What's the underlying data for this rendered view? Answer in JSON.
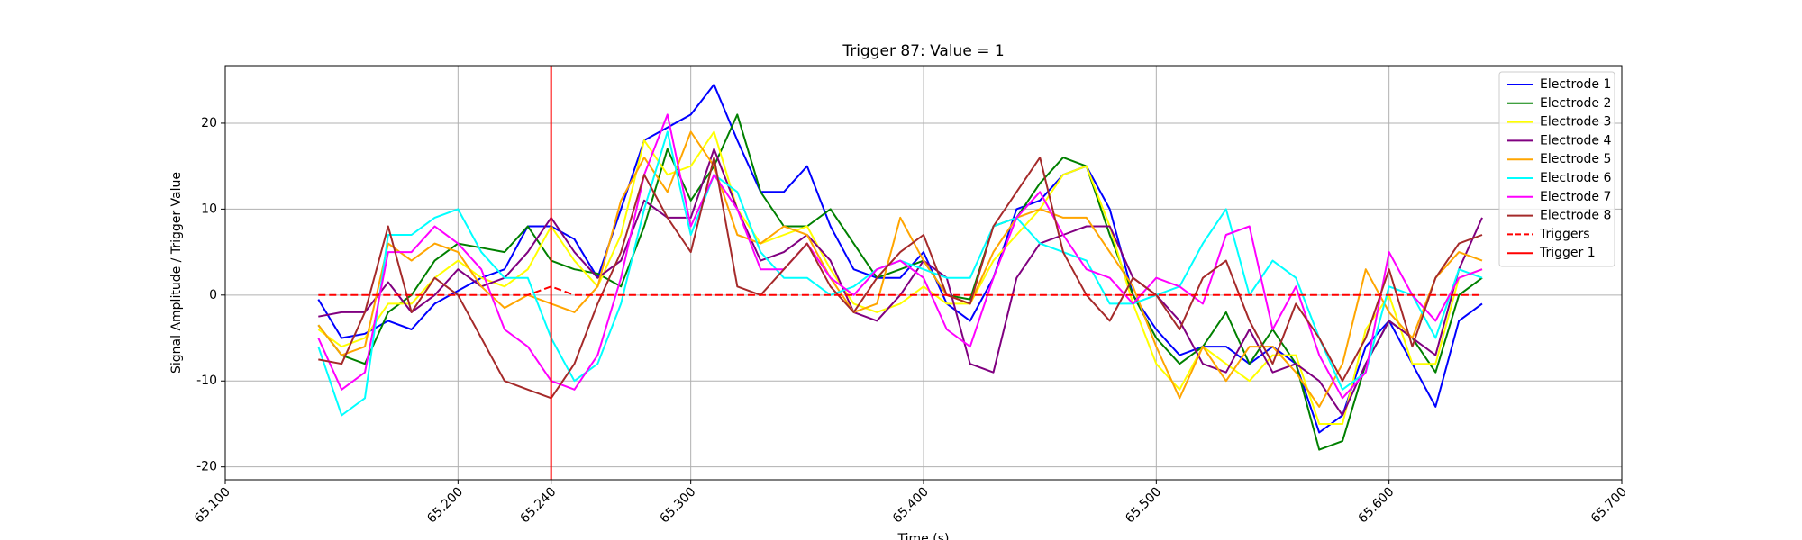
{
  "chart_data": {
    "type": "line",
    "title": "Trigger 87: Value = 1",
    "x_label": "Time (s)",
    "y_label": "Signal Amplitude / Trigger Value",
    "x": [
      65.14,
      65.15,
      65.16,
      65.17,
      65.18,
      65.19,
      65.2,
      65.21,
      65.22,
      65.23,
      65.24,
      65.25,
      65.26,
      65.27,
      65.28,
      65.29,
      65.3,
      65.31,
      65.32,
      65.33,
      65.34,
      65.35,
      65.36,
      65.37,
      65.38,
      65.39,
      65.4,
      65.41,
      65.42,
      65.43,
      65.44,
      65.45,
      65.46,
      65.47,
      65.48,
      65.49,
      65.5,
      65.51,
      65.52,
      65.53,
      65.54,
      65.55,
      65.56,
      65.57,
      65.58,
      65.59,
      65.6,
      65.61,
      65.62,
      65.63,
      65.64
    ],
    "series": [
      {
        "name": "Electrode 1",
        "color": "#0000ff",
        "values": [
          -0.5,
          -5,
          -4.5,
          -3,
          -4,
          -1,
          0.5,
          2,
          3,
          8,
          8,
          6.5,
          2,
          10,
          18,
          19.5,
          21,
          24.5,
          18,
          12,
          12,
          15,
          8,
          3,
          2,
          2,
          5,
          -1,
          -3,
          2,
          10,
          11,
          14,
          15,
          10,
          0,
          -4,
          -7,
          -6,
          -6,
          -8,
          -6,
          -8,
          -16,
          -14,
          -6,
          -3,
          -8,
          -13,
          -3,
          -1
        ]
      },
      {
        "name": "Electrode 2",
        "color": "#008000",
        "values": [
          -3.5,
          -7,
          -8,
          -2,
          0,
          4,
          6,
          5.5,
          5,
          8,
          4,
          3,
          2.5,
          1,
          8,
          17,
          11,
          15,
          21,
          12,
          8,
          8,
          10,
          6,
          2,
          3,
          4,
          0,
          -0.5,
          8,
          9,
          13,
          16,
          15,
          7,
          0,
          -5,
          -8,
          -6,
          -2,
          -8,
          -4,
          -8,
          -18,
          -17,
          -8,
          -3,
          -5,
          -9,
          0,
          2
        ]
      },
      {
        "name": "Electrode 3",
        "color": "#ffff00",
        "values": [
          -4,
          -6,
          -5,
          -1,
          -1,
          2,
          4,
          2,
          1,
          3,
          8,
          4,
          1,
          7,
          18,
          14,
          15,
          19,
          10,
          6,
          7,
          8,
          3,
          -1,
          -2,
          -1,
          1,
          -1,
          -1,
          4,
          7,
          10,
          14,
          15,
          8,
          -1,
          -8,
          -11,
          -6,
          -8,
          -10,
          -7,
          -7,
          -15,
          -15,
          -4,
          0,
          -8,
          -8,
          2,
          3
        ]
      },
      {
        "name": "Electrode 4",
        "color": "#800080",
        "values": [
          -2.5,
          -2,
          -2,
          1.5,
          -2,
          0,
          3,
          1,
          2,
          5,
          9,
          5,
          2,
          4,
          11,
          9,
          9,
          17,
          10,
          4,
          5,
          7,
          4,
          -2,
          -3,
          0,
          4,
          2,
          -8,
          -9,
          2,
          6,
          7,
          8,
          8,
          2,
          0,
          -3,
          -8,
          -9,
          -4,
          -9,
          -8,
          -10,
          -14,
          -8,
          -3,
          -5,
          -7,
          3,
          9
        ]
      },
      {
        "name": "Electrode 5",
        "color": "#ffa500",
        "values": [
          -3.5,
          -7,
          -6,
          6,
          4,
          6,
          5,
          1,
          -1.5,
          0,
          -1,
          -2,
          1,
          11,
          16,
          12,
          19,
          15,
          7,
          6,
          8,
          7,
          2,
          -2,
          -1,
          9,
          4,
          0,
          -1,
          5,
          9,
          10,
          9,
          9,
          5,
          1,
          -6,
          -12,
          -6,
          -10,
          -6,
          -6,
          -9,
          -13,
          -8,
          3,
          -2,
          -5,
          2,
          5,
          4
        ]
      },
      {
        "name": "Electrode 6",
        "color": "#00ffff",
        "values": [
          -6,
          -14,
          -12,
          7,
          7,
          9,
          10,
          5,
          2,
          2,
          -5,
          -10,
          -8,
          -1,
          10,
          19,
          7,
          14,
          12,
          5,
          2,
          2,
          0,
          1,
          3,
          4,
          3,
          2,
          2,
          8,
          9,
          6,
          5,
          4,
          -1,
          -1,
          0,
          1,
          6,
          10,
          0,
          4,
          2,
          -5,
          -11,
          -9,
          1,
          0,
          -5,
          3,
          2
        ]
      },
      {
        "name": "Electrode 7",
        "color": "#ff00ff",
        "values": [
          -5,
          -11,
          -9,
          5,
          5,
          8,
          6,
          3,
          -4,
          -6,
          -10,
          -11,
          -7,
          2,
          14,
          21,
          8,
          14,
          10,
          3,
          3,
          6,
          2,
          0,
          3,
          4,
          2,
          -4,
          -6,
          2,
          9,
          12,
          7,
          3,
          2,
          -1,
          2,
          1,
          -1,
          7,
          8,
          -4,
          1,
          -7,
          -12,
          -9,
          5,
          0,
          -3,
          2,
          3
        ]
      },
      {
        "name": "Electrode 8",
        "color": "#a52a2a",
        "values": [
          -7.5,
          -8,
          -2,
          8,
          -2,
          2,
          0,
          -5,
          -10,
          -11,
          -12,
          -8,
          -1,
          5,
          14,
          9,
          5,
          16,
          1,
          0,
          3,
          6,
          1,
          -2,
          2,
          5,
          7,
          0,
          -1,
          8,
          12,
          16,
          5,
          0,
          -3,
          2,
          0,
          -4,
          2,
          4,
          -3,
          -8,
          -1,
          -5,
          -10,
          -5,
          3,
          -6,
          2,
          6,
          7
        ]
      },
      {
        "name": "Triggers",
        "color": "#ff0000",
        "linestyle": "dashed",
        "values": [
          0,
          0,
          0,
          0,
          0,
          0,
          0,
          0,
          0,
          0,
          1,
          0,
          0,
          0,
          0,
          0,
          0,
          0,
          0,
          0,
          0,
          0,
          0,
          0,
          0,
          0,
          0,
          0,
          0,
          0,
          0,
          0,
          0,
          0,
          0,
          0,
          0,
          0,
          0,
          0,
          0,
          0,
          0,
          0,
          0,
          0,
          0,
          0,
          0,
          0,
          0
        ]
      }
    ],
    "vlines": [
      {
        "name": "Trigger 1",
        "x": 65.24,
        "color": "#ff0000"
      }
    ],
    "xlim": [
      65.1,
      65.7
    ],
    "xticks": [
      {
        "value": 65.1,
        "label": "65.100"
      },
      {
        "value": 65.2,
        "label": "65.200"
      },
      {
        "value": 65.24,
        "label": "65.240"
      },
      {
        "value": 65.3,
        "label": "65.300"
      },
      {
        "value": 65.4,
        "label": "65.400"
      },
      {
        "value": 65.5,
        "label": "65.500"
      },
      {
        "value": 65.6,
        "label": "65.600"
      },
      {
        "value": 65.7,
        "label": "65.700"
      }
    ],
    "ylim": [
      -21.5,
      26.7
    ],
    "yticks": [
      -20,
      -10,
      0,
      10,
      20
    ],
    "grid": true,
    "legend": "upper right"
  }
}
